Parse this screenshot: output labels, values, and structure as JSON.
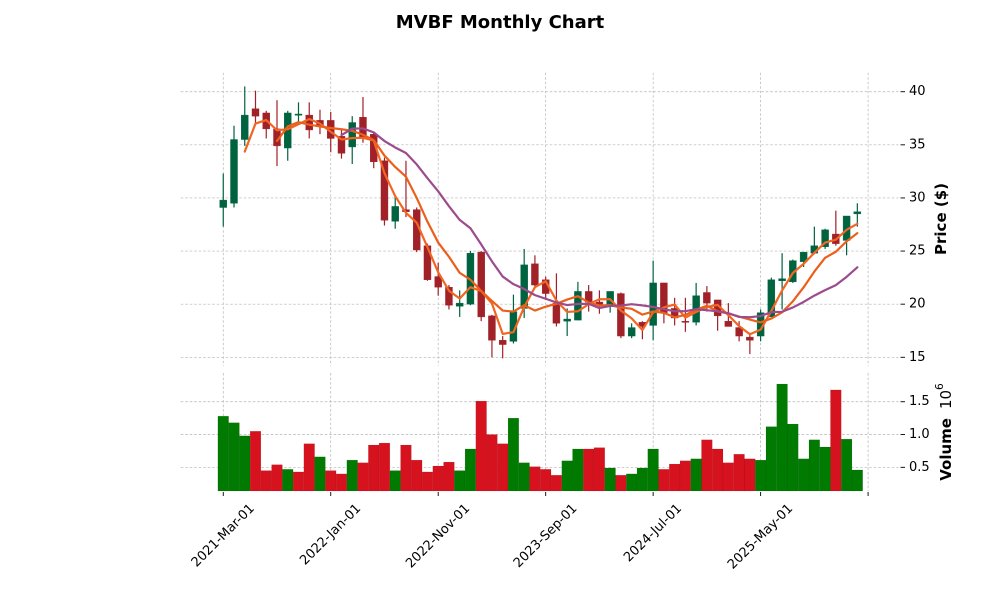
{
  "chart_data": [
    {
      "type": "candlestick",
      "title": "MVBF Monthly Chart",
      "ylabel": "Price ($)",
      "xlabel": "",
      "xlim": [
        -3.96,
        62.83
      ],
      "ylim": [
        14.18,
        41.79
      ],
      "grid": true,
      "yaxis_side": "right",
      "yticks": [
        15,
        20,
        25,
        30,
        35,
        40
      ],
      "ytick_labels": [
        "15",
        "20",
        "25",
        "30",
        "35",
        "40"
      ],
      "xticks": [
        0,
        10,
        20,
        30,
        40,
        50,
        60
      ],
      "xtick_labels": [
        "2021-Mar-01",
        "2022-Jan-01",
        "2022-Nov-01",
        "2023-Sep-01",
        "2024-Jul-01",
        "2025-May-01"
      ],
      "ohlc": {
        "open": [
          29.1,
          29.5,
          35.5,
          38.4,
          38.0,
          36.5,
          34.7,
          37.8,
          37.8,
          37.3,
          37.3,
          35.8,
          34.8,
          37.6,
          36.0,
          33.5,
          27.8,
          28.9,
          28.9,
          25.5,
          22.6,
          21.6,
          19.8,
          20.0,
          24.9,
          18.9,
          16.6,
          16.5,
          19.6,
          23.8,
          22.3,
          20.1,
          18.4,
          18.5,
          21.2,
          20.2,
          19.9,
          21.0,
          17.0,
          18.3,
          18.0,
          22.0,
          19.6,
          18.4,
          18.3,
          21.1,
          20.4,
          18.4,
          17.8,
          16.9,
          17.0,
          18.8,
          22.2,
          22.1,
          24.0,
          24.8,
          25.4,
          26.6,
          26.0,
          28.5
        ],
        "high": [
          32.3,
          36.8,
          40.5,
          40.1,
          38.2,
          39.2,
          38.2,
          39.0,
          39.0,
          38.3,
          38.1,
          36.5,
          37.7,
          39.5,
          36.2,
          33.8,
          30.1,
          33.5,
          29.1,
          25.7,
          23.9,
          21.8,
          21.3,
          25.0,
          25.0,
          19.0,
          17.0,
          20.9,
          25.2,
          24.6,
          22.6,
          22.9,
          19.6,
          22.1,
          21.8,
          21.3,
          21.2,
          21.1,
          18.2,
          18.4,
          24.1,
          22.0,
          20.6,
          20.6,
          22.0,
          21.7,
          20.4,
          20.1,
          18.4,
          17.3,
          19.5,
          22.5,
          24.8,
          24.2,
          24.9,
          27.3,
          27.1,
          28.8,
          28.3,
          29.5
        ],
        "low": [
          27.3,
          29.1,
          34.9,
          37.0,
          35.6,
          33.0,
          33.5,
          36.9,
          35.6,
          36.0,
          34.3,
          33.7,
          33.2,
          35.2,
          32.8,
          27.4,
          27.1,
          28.2,
          24.9,
          22.2,
          20.8,
          19.5,
          18.8,
          19.9,
          18.4,
          15.0,
          14.9,
          16.3,
          18.7,
          21.6,
          20.4,
          17.9,
          17.0,
          18.5,
          19.3,
          19.1,
          19.2,
          16.8,
          16.8,
          16.7,
          16.6,
          18.2,
          18.0,
          17.4,
          18.0,
          19.3,
          17.5,
          17.9,
          16.5,
          15.3,
          16.5,
          18.8,
          19.5,
          22.0,
          23.5,
          24.7,
          25.2,
          25.5,
          24.6,
          27.3
        ],
        "close": [
          29.8,
          35.5,
          37.8,
          37.7,
          36.5,
          34.9,
          38.0,
          37.9,
          36.4,
          36.7,
          35.6,
          34.2,
          37.1,
          35.7,
          33.4,
          27.9,
          29.2,
          28.7,
          25.1,
          22.3,
          21.6,
          19.9,
          20.1,
          24.8,
          18.8,
          16.6,
          16.2,
          19.3,
          23.7,
          21.8,
          21.0,
          18.2,
          18.6,
          21.2,
          20.2,
          20.0,
          21.2,
          17.0,
          17.8,
          17.9,
          22.0,
          19.2,
          18.7,
          18.3,
          20.8,
          20.1,
          18.9,
          17.9,
          17.0,
          16.6,
          19.2,
          22.3,
          22.4,
          24.1,
          24.9,
          25.5,
          27.0,
          25.7,
          28.3,
          28.7
        ]
      },
      "moving_averages": [
        {
          "window": 3,
          "color": "#f26522"
        },
        {
          "window": 6,
          "color": "#ec5f1b"
        },
        {
          "window": 12,
          "color": "#9c4c8c"
        }
      ],
      "colors": {
        "up": "#006340",
        "down": "#a02128"
      }
    },
    {
      "type": "bar",
      "ylabel": "Volume",
      "ylabel_exponent": {
        "base": "10",
        "power": "6"
      },
      "ylim": [
        0.139,
        1.938
      ],
      "grid": true,
      "yaxis_side": "right",
      "yticks": [
        0.5,
        1.0,
        1.5
      ],
      "ytick_labels": [
        "0.5",
        "1.0",
        "1.5"
      ],
      "values": [
        1.28,
        1.18,
        0.98,
        1.05,
        0.45,
        0.54,
        0.47,
        0.43,
        0.86,
        0.66,
        0.45,
        0.4,
        0.61,
        0.57,
        0.84,
        0.87,
        0.45,
        0.84,
        0.61,
        0.43,
        0.52,
        0.58,
        0.45,
        0.78,
        1.51,
        1.0,
        0.86,
        1.25,
        0.57,
        0.51,
        0.47,
        0.38,
        0.6,
        0.78,
        0.78,
        0.8,
        0.49,
        0.38,
        0.4,
        0.49,
        0.78,
        0.47,
        0.55,
        0.6,
        0.63,
        0.92,
        0.78,
        0.57,
        0.7,
        0.63,
        0.61,
        1.12,
        1.77,
        1.16,
        0.63,
        0.92,
        0.81,
        1.68,
        0.93,
        0.46
      ],
      "colors": {
        "up": "#007a00",
        "down": "#d5121e"
      }
    }
  ]
}
